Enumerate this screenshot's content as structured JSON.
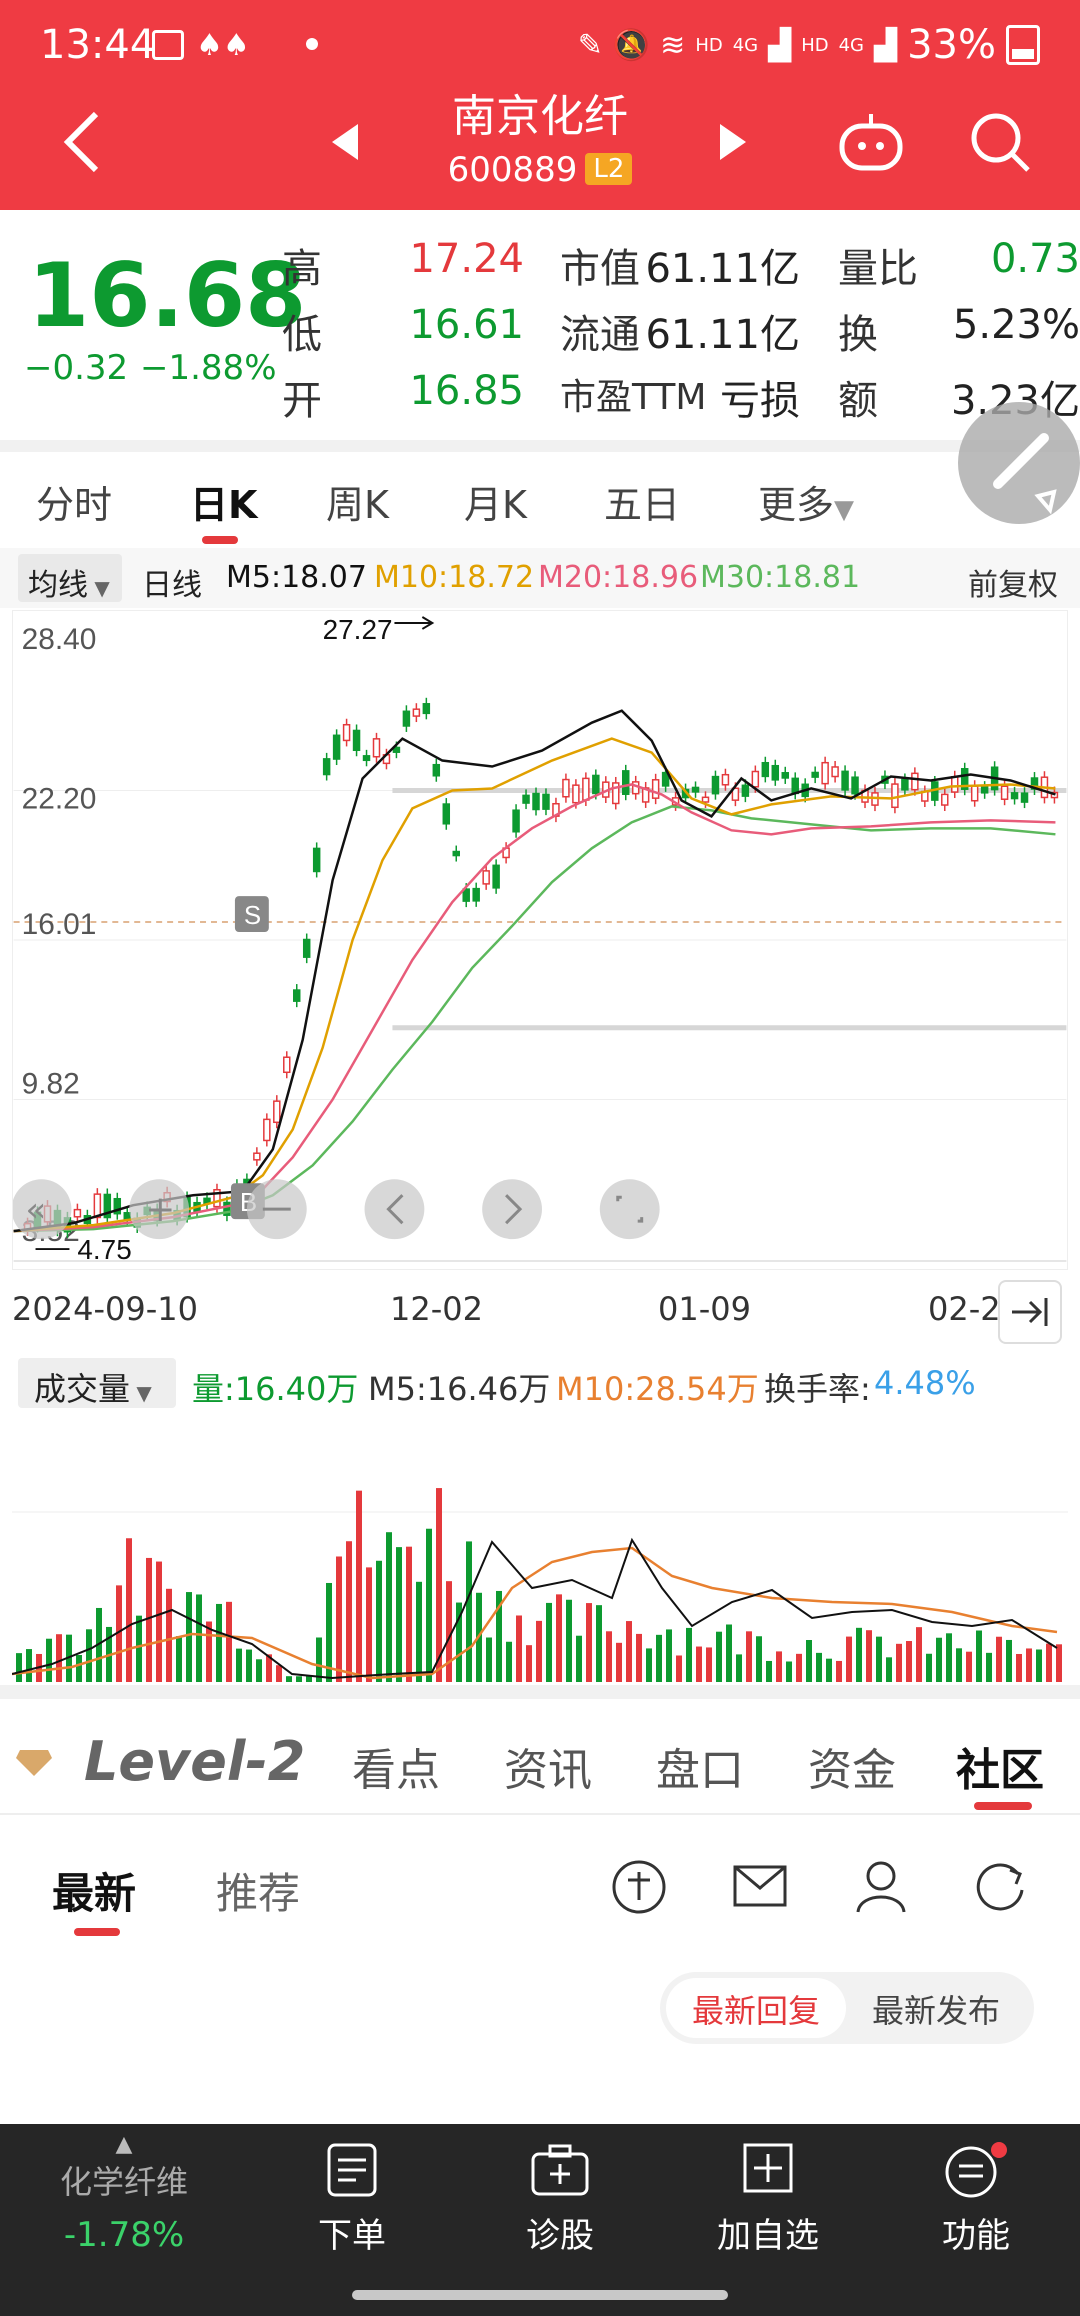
{
  "status_bar": {
    "time": "13:44",
    "battery": "33%",
    "net_labels": [
      "HD",
      "4G",
      "HD",
      "4G"
    ]
  },
  "header": {
    "title": "南京化纤",
    "code": "600889",
    "badge": "L2"
  },
  "quote": {
    "price": "16.68",
    "change": "−0.32",
    "change_pct": "−1.88%",
    "high_label": "高",
    "high": "17.24",
    "low_label": "低",
    "low": "16.61",
    "open_label": "开",
    "open": "16.85",
    "mcap_label": "市值",
    "mcap": "61.11亿",
    "float_label": "流通",
    "float": "61.11亿",
    "pe_label": "市盈TTM",
    "pe": "亏损",
    "vol_ratio_label": "量比",
    "vol_ratio": "0.73",
    "turnover_label": "换",
    "turnover": "5.23%",
    "amount_label": "额",
    "amount": "3.23亿"
  },
  "kline_tabs": [
    "分时",
    "日K",
    "周K",
    "月K",
    "五日",
    "更多"
  ],
  "ma_row": {
    "selector": "均线",
    "period": "日线",
    "m5": "M5:18.07",
    "m10": "M10:18.72",
    "m20": "M20:18.96",
    "m30": "M30:18.81",
    "adjust": "前复权"
  },
  "colors": {
    "red": "#e4393c",
    "green": "#0d9a30",
    "m5": "#111111",
    "m10": "#e0a000",
    "m20": "#e85c7a",
    "m30": "#5cb85c"
  },
  "price_chart": {
    "y_ticks": [
      "28.40",
      "22.20",
      "16.01",
      "9.82",
      "3.52"
    ],
    "max_label": "27.27",
    "min_label": "4.75",
    "signal_s": "S",
    "signal_b": "B"
  },
  "date_axis": [
    "2024-09-10",
    "12-02",
    "01-09",
    "02-2"
  ],
  "volume": {
    "selector": "成交量",
    "vol": "量:16.40万",
    "m5": "M5:16.46万",
    "m10": "M10:28.54万",
    "turnover": "换手率:",
    "turnover_val": "4.48%"
  },
  "info_tabs": {
    "logo": "Level-2",
    "items": [
      "看点",
      "资讯",
      "盘口",
      "资金",
      "社区"
    ]
  },
  "sub_tabs": [
    "最新",
    "推荐"
  ],
  "sort_options": [
    "最新回复",
    "最新发布"
  ],
  "bottom_bar": {
    "sector_name": "化学纤维",
    "sector_change": "-1.78%",
    "items": [
      "下单",
      "诊股",
      "加自选",
      "功能"
    ]
  }
}
